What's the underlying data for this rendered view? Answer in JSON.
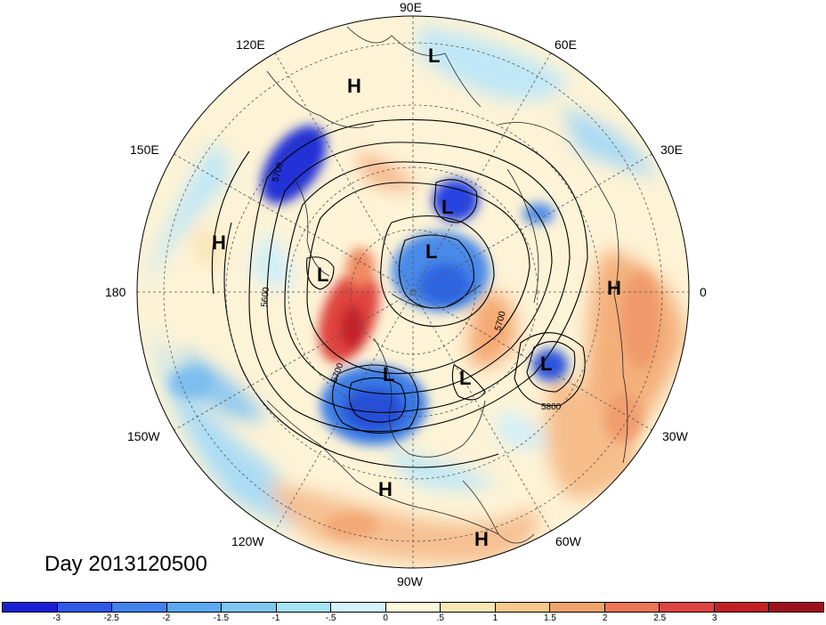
{
  "map": {
    "title": "Day 2013120500",
    "longitude_labels": {
      "n90E": "90E",
      "n60E": "60E",
      "n120E": "120E",
      "n30E": "30E",
      "n150E": "150E",
      "n180": "180",
      "n0": "0",
      "n150W": "150W",
      "n30W": "30W",
      "n120W": "120W",
      "n60W": "60W",
      "n90W": "90W"
    },
    "contour_labels": [
      "5700",
      "5600",
      "5700",
      "5700",
      "5800"
    ],
    "pressure_centers": [
      {
        "type": "L",
        "id": "low-siberia-north"
      },
      {
        "type": "H",
        "id": "high-east-siberia"
      },
      {
        "type": "L",
        "id": "low-kara-sea"
      },
      {
        "type": "H",
        "id": "high-north-pacific"
      },
      {
        "type": "L",
        "id": "low-bering"
      },
      {
        "type": "L",
        "id": "low-pole"
      },
      {
        "type": "H",
        "id": "high-africa"
      },
      {
        "type": "L",
        "id": "low-atlantic"
      },
      {
        "type": "L",
        "id": "low-canada"
      },
      {
        "type": "L",
        "id": "low-labrador"
      },
      {
        "type": "H",
        "id": "high-mexico"
      },
      {
        "type": "H",
        "id": "high-south-america"
      }
    ],
    "colors": {
      "strong_negative": "#1a1fd6",
      "negative": "#5aa9e8",
      "weak_negative": "#aadcf5",
      "neutral": "#fdf6dc",
      "weak_positive": "#f9d9a0",
      "positive": "#f3a06b",
      "strong_positive": "#d92a2a"
    }
  },
  "colorbar": {
    "swatch_colors": [
      "#1a1fd6",
      "#2e5ae8",
      "#3f83ef",
      "#5aa9f2",
      "#7cc6f4",
      "#a3e3f7",
      "#d3f4fb",
      "#fdf9dc",
      "#fbe6b4",
      "#f7c98b",
      "#f2a36c",
      "#ec7654",
      "#e04343",
      "#c41f24",
      "#a0101c"
    ],
    "tick_labels": [
      "-3",
      "-2.5",
      "-2",
      "-1.5",
      "-1",
      "-.5",
      "0",
      ".5",
      "1",
      "1.5",
      "2",
      "2.5",
      "3"
    ]
  }
}
